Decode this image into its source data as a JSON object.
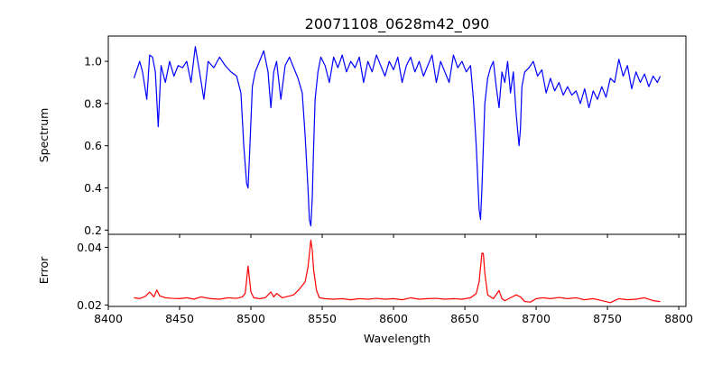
{
  "figure": {
    "title": "20071108_0628m42_090",
    "top_ylabel": "Spectrum",
    "bottom_ylabel": "Error",
    "xlabel": "Wavelength"
  },
  "chart_data": [
    {
      "type": "line",
      "name": "spectrum-panel",
      "title": "20071108_0628m42_090",
      "xlabel": "",
      "ylabel": "Spectrum",
      "xlim": [
        8400,
        8805
      ],
      "ylim": [
        0.18,
        1.12
      ],
      "xticks": [
        8400,
        8450,
        8500,
        8550,
        8600,
        8650,
        8700,
        8750,
        8800
      ],
      "yticks": [
        0.2,
        0.4,
        0.6,
        0.8,
        1.0
      ],
      "ytick_labels": [
        "0.2",
        "0.4",
        "0.6",
        "0.8",
        "1.0"
      ],
      "show_xtick_labels": false,
      "grid": false,
      "series": [
        {
          "color": "#0000ff",
          "x": [
            8418,
            8422,
            8424,
            8427,
            8429,
            8431,
            8433,
            8435,
            8437,
            8440,
            8443,
            8446,
            8449,
            8452,
            8455,
            8458,
            8461,
            8464,
            8467,
            8470,
            8474,
            8478,
            8482,
            8486,
            8490,
            8493,
            8495,
            8497,
            8498,
            8499,
            8501,
            8503,
            8506,
            8509,
            8512,
            8514,
            8516,
            8518,
            8521,
            8524,
            8527,
            8530,
            8533,
            8536,
            8538,
            8540,
            8541,
            8542,
            8543,
            8544,
            8545,
            8547,
            8549,
            8552,
            8555,
            8558,
            8561,
            8564,
            8567,
            8570,
            8573,
            8576,
            8579,
            8582,
            8585,
            8588,
            8591,
            8594,
            8597,
            8600,
            8603,
            8606,
            8609,
            8612,
            8615,
            8618,
            8621,
            8624,
            8627,
            8630,
            8633,
            8636,
            8639,
            8642,
            8645,
            8648,
            8651,
            8654,
            8656,
            8658,
            8660,
            8661,
            8662,
            8663,
            8664,
            8666,
            8668,
            8670,
            8672,
            8674,
            8676,
            8678,
            8680,
            8682,
            8684,
            8686,
            8688,
            8689,
            8690,
            8692,
            8695,
            8698,
            8701,
            8704,
            8707,
            8710,
            8713,
            8716,
            8719,
            8722,
            8725,
            8728,
            8731,
            8734,
            8737,
            8740,
            8743,
            8746,
            8749,
            8752,
            8755,
            8758,
            8761,
            8764,
            8767,
            8770,
            8773,
            8776,
            8779,
            8782,
            8785,
            8787
          ],
          "y": [
            0.92,
            1.0,
            0.95,
            0.82,
            1.03,
            1.02,
            0.95,
            0.69,
            0.98,
            0.9,
            1.0,
            0.93,
            0.98,
            0.97,
            1.0,
            0.9,
            1.07,
            0.95,
            0.82,
            1.0,
            0.97,
            1.02,
            0.98,
            0.95,
            0.93,
            0.85,
            0.6,
            0.42,
            0.4,
            0.55,
            0.88,
            0.95,
            1.0,
            1.05,
            0.95,
            0.78,
            0.95,
            1.0,
            0.82,
            0.98,
            1.02,
            0.97,
            0.92,
            0.85,
            0.65,
            0.4,
            0.25,
            0.22,
            0.35,
            0.6,
            0.82,
            0.95,
            1.02,
            0.98,
            0.9,
            1.02,
            0.97,
            1.03,
            0.95,
            1.0,
            0.97,
            1.02,
            0.9,
            1.0,
            0.95,
            1.03,
            0.98,
            0.93,
            1.0,
            0.96,
            1.02,
            0.9,
            0.98,
            1.02,
            0.95,
            1.0,
            0.93,
            0.98,
            1.03,
            0.9,
            1.0,
            0.95,
            0.9,
            1.03,
            0.97,
            1.0,
            0.95,
            0.98,
            0.82,
            0.6,
            0.3,
            0.25,
            0.4,
            0.6,
            0.8,
            0.92,
            0.97,
            1.0,
            0.88,
            0.78,
            0.95,
            0.9,
            1.0,
            0.85,
            0.95,
            0.75,
            0.6,
            0.68,
            0.88,
            0.95,
            0.97,
            1.0,
            0.93,
            0.96,
            0.85,
            0.92,
            0.86,
            0.9,
            0.84,
            0.88,
            0.84,
            0.86,
            0.8,
            0.87,
            0.78,
            0.86,
            0.82,
            0.88,
            0.83,
            0.92,
            0.9,
            1.01,
            0.93,
            0.98,
            0.87,
            0.95,
            0.9,
            0.94,
            0.88,
            0.93,
            0.9,
            0.93
          ]
        }
      ]
    },
    {
      "type": "line",
      "name": "error-panel",
      "title": "",
      "xlabel": "Wavelength",
      "ylabel": "Error",
      "xlim": [
        8400,
        8805
      ],
      "ylim": [
        0.0195,
        0.0445
      ],
      "xticks": [
        8400,
        8450,
        8500,
        8550,
        8600,
        8650,
        8700,
        8750,
        8800
      ],
      "xtick_labels": [
        "8400",
        "8450",
        "8500",
        "8550",
        "8600",
        "8650",
        "8700",
        "8750",
        "8800"
      ],
      "yticks": [
        0.02,
        0.04
      ],
      "ytick_labels": [
        "0.02",
        "0.04"
      ],
      "show_xtick_labels": true,
      "grid": false,
      "series": [
        {
          "color": "#ff0000",
          "x": [
            8418,
            8422,
            8426,
            8429,
            8432,
            8434,
            8436,
            8440,
            8445,
            8450,
            8455,
            8460,
            8465,
            8468,
            8472,
            8478,
            8484,
            8490,
            8494,
            8496,
            8498,
            8500,
            8502,
            8506,
            8510,
            8514,
            8516,
            8518,
            8522,
            8526,
            8530,
            8534,
            8538,
            8540,
            8542,
            8543,
            8544,
            8546,
            8548,
            8552,
            8558,
            8564,
            8570,
            8576,
            8582,
            8588,
            8594,
            8600,
            8606,
            8612,
            8618,
            8624,
            8630,
            8636,
            8642,
            8648,
            8654,
            8658,
            8660,
            8662,
            8663,
            8664,
            8666,
            8670,
            8674,
            8676,
            8678,
            8682,
            8686,
            8689,
            8692,
            8696,
            8700,
            8705,
            8710,
            8716,
            8722,
            8728,
            8734,
            8740,
            8746,
            8752,
            8758,
            8764,
            8770,
            8776,
            8782,
            8787
          ],
          "y": [
            0.0225,
            0.0222,
            0.023,
            0.0245,
            0.0228,
            0.0252,
            0.0232,
            0.0225,
            0.0223,
            0.0222,
            0.0225,
            0.022,
            0.0228,
            0.0225,
            0.0222,
            0.022,
            0.0225,
            0.0223,
            0.0228,
            0.024,
            0.0335,
            0.0245,
            0.0225,
            0.0222,
            0.0225,
            0.0245,
            0.0228,
            0.024,
            0.0225,
            0.023,
            0.0235,
            0.0255,
            0.028,
            0.033,
            0.0425,
            0.039,
            0.032,
            0.025,
            0.0225,
            0.0222,
            0.022,
            0.0222,
            0.0218,
            0.0222,
            0.022,
            0.0223,
            0.022,
            0.0222,
            0.0218,
            0.0225,
            0.022,
            0.0222,
            0.0223,
            0.022,
            0.0222,
            0.022,
            0.0225,
            0.024,
            0.028,
            0.038,
            0.0378,
            0.031,
            0.0235,
            0.0222,
            0.025,
            0.0222,
            0.0215,
            0.0225,
            0.0235,
            0.0228,
            0.0212,
            0.021,
            0.0222,
            0.0225,
            0.0222,
            0.0226,
            0.0222,
            0.0225,
            0.0218,
            0.0222,
            0.0215,
            0.0208,
            0.0222,
            0.0218,
            0.022,
            0.0225,
            0.0215,
            0.0212
          ]
        }
      ]
    }
  ]
}
